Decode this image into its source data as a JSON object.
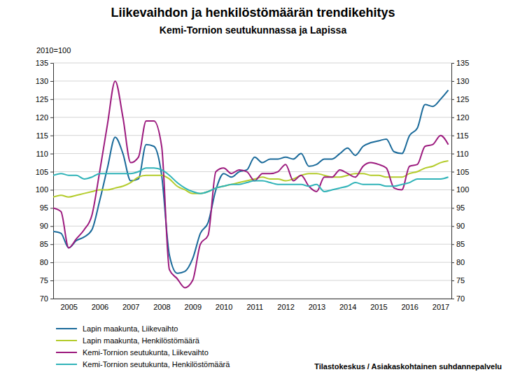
{
  "chart_data": {
    "type": "line",
    "title": "Liikevaihdon ja henkilöstömäärän trendikehitys",
    "subtitle": "Kemi-Tornion seutukunnassa ja Lapissa",
    "ylabel": "2010=100",
    "source": "Tilastokeskus / Asiakaskohtainen suhdannepalvelu",
    "x": [
      2005,
      2005.25,
      2005.5,
      2005.75,
      2006,
      2006.25,
      2006.5,
      2006.75,
      2007,
      2007.25,
      2007.5,
      2007.75,
      2008,
      2008.25,
      2008.5,
      2008.75,
      2009,
      2009.25,
      2009.5,
      2009.75,
      2010,
      2010.25,
      2010.5,
      2010.75,
      2011,
      2011.25,
      2011.5,
      2011.75,
      2012,
      2012.25,
      2012.5,
      2012.75,
      2013,
      2013.25,
      2013.5,
      2013.75,
      2014,
      2014.25,
      2014.5,
      2014.75,
      2015,
      2015.25,
      2015.5,
      2015.75,
      2016,
      2016.25,
      2016.5,
      2016.75,
      2017,
      2017.25,
      2017.5,
      2017.75
    ],
    "xlim": [
      2005,
      2017.85
    ],
    "xticks": [
      {
        "value": 2005.5,
        "label": "2005"
      },
      {
        "value": 2006.5,
        "label": "2006"
      },
      {
        "value": 2007.5,
        "label": "2007"
      },
      {
        "value": 2008.5,
        "label": "2008"
      },
      {
        "value": 2009.5,
        "label": "2009"
      },
      {
        "value": 2010.5,
        "label": "2010"
      },
      {
        "value": 2011.5,
        "label": "2011"
      },
      {
        "value": 2012.5,
        "label": "2012"
      },
      {
        "value": 2013.5,
        "label": "2013"
      },
      {
        "value": 2014.5,
        "label": "2014"
      },
      {
        "value": 2015.5,
        "label": "2015"
      },
      {
        "value": 2016.5,
        "label": "2016"
      },
      {
        "value": 2017.5,
        "label": "2017"
      }
    ],
    "ylim": [
      70,
      135
    ],
    "yticks": [
      70,
      75,
      80,
      85,
      90,
      95,
      100,
      105,
      110,
      115,
      120,
      125,
      130,
      135
    ],
    "y2lim": [
      70,
      135
    ],
    "y2ticks": [
      70,
      75,
      80,
      85,
      90,
      95,
      100,
      105,
      110,
      115,
      120,
      125,
      130,
      135
    ],
    "grid": true,
    "legend": "bottom",
    "series": [
      {
        "name": "Lapin maakunta, Liikevaihto",
        "color": "#1a6a9a",
        "values": [
          88.5,
          88,
          84,
          86,
          87,
          89,
          97,
          106,
          114.5,
          110,
          102.5,
          103,
          112.5,
          112,
          104,
          82,
          77,
          77.5,
          81,
          88,
          91,
          100,
          104.5,
          103.5,
          105,
          105.5,
          109,
          107.5,
          108.5,
          108.5,
          109,
          108.5,
          110,
          106.5,
          107,
          108.5,
          108.5,
          110,
          111.5,
          109.5,
          112,
          113,
          113.5,
          114,
          110.5,
          110,
          115,
          117,
          123.5,
          123,
          125,
          127.5
        ]
      },
      {
        "name": "Lapin maakunta, Henkilöstömäärä",
        "color": "#b4cc2c",
        "values": [
          98,
          98.5,
          98,
          98.5,
          99,
          99.5,
          100,
          100,
          100.5,
          101,
          102,
          103.5,
          104,
          104,
          104,
          103,
          101,
          100,
          99,
          99,
          99.5,
          100.5,
          101,
          101.5,
          102,
          102.5,
          103,
          103.5,
          103,
          103,
          102.5,
          103,
          104,
          104.5,
          104.5,
          104,
          103.5,
          103.5,
          104,
          104.5,
          104.5,
          104,
          104,
          103.5,
          103.5,
          103.5,
          104.5,
          105,
          106,
          106.5,
          107.5,
          108
        ]
      },
      {
        "name": "Kemi-Tornion seutukunta, Liikevaihto",
        "color": "#9c1a7e",
        "values": [
          95,
          94,
          84,
          86.5,
          89,
          93,
          105,
          118,
          130,
          120,
          107.5,
          109,
          119,
          119,
          112,
          78,
          75.5,
          73,
          75,
          85,
          87.5,
          105,
          106,
          104.5,
          105.5,
          105,
          102.5,
          104.5,
          104.5,
          105,
          107,
          102.5,
          104,
          101,
          99.5,
          103.5,
          103.5,
          105.5,
          104.5,
          103.5,
          106.5,
          107.5,
          107,
          106,
          100.5,
          100,
          106.5,
          107,
          112,
          112.5,
          115,
          112.5
        ]
      },
      {
        "name": "Kemi-Tornion seutukunta, Henkilöstömäärä",
        "color": "#2fb3b8",
        "values": [
          104,
          104.5,
          104,
          104,
          103,
          103.5,
          104.5,
          104.5,
          104.5,
          104.5,
          104.5,
          105,
          106,
          106,
          105.5,
          104,
          102,
          100.5,
          99.5,
          99,
          99.5,
          100.5,
          101,
          101.5,
          101.5,
          102,
          102.5,
          102.5,
          102,
          101.5,
          101.5,
          101.5,
          101.5,
          101,
          101.5,
          99.5,
          100,
          100.5,
          101,
          102,
          101.5,
          101.5,
          101.5,
          101,
          101,
          101.5,
          102,
          103,
          103,
          103,
          103,
          103.5
        ]
      }
    ]
  }
}
